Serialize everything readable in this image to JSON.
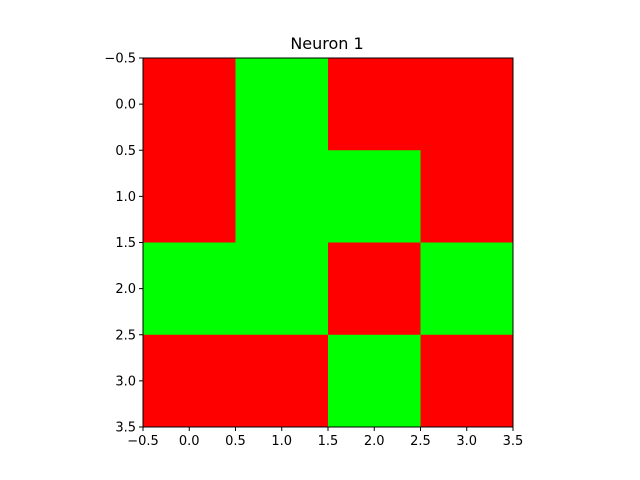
{
  "chart_data": {
    "type": "heatmap",
    "title": "Neuron 1",
    "xlabel": "",
    "ylabel": "",
    "xlim": [
      -0.5,
      3.5
    ],
    "ylim": [
      3.5,
      -0.5
    ],
    "xticks": [
      "−0.5",
      "0.0",
      "0.5",
      "1.0",
      "1.5",
      "2.0",
      "2.5",
      "3.0",
      "3.5"
    ],
    "yticks": [
      "−0.5",
      "0.0",
      "0.5",
      "1.0",
      "1.5",
      "2.0",
      "2.5",
      "3.0",
      "3.5"
    ],
    "grid": false,
    "colors": {
      "0": "#ff0000",
      "1": "#00ff00"
    },
    "values": [
      [
        0,
        1,
        0,
        0
      ],
      [
        0,
        1,
        1,
        0
      ],
      [
        1,
        1,
        0,
        1
      ],
      [
        0,
        0,
        1,
        0
      ]
    ]
  }
}
